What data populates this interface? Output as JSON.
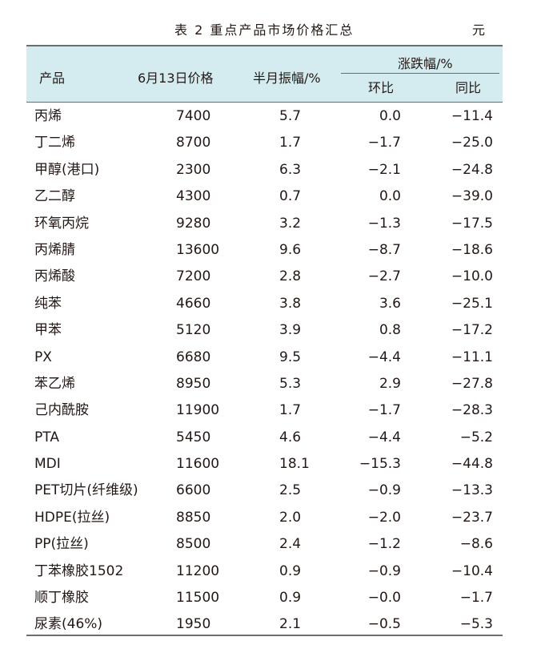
{
  "caption": {
    "title": "表 2  重点产品市场价格汇总",
    "unit": "元"
  },
  "headers": {
    "product": "产品",
    "price": "6月13日价格",
    "amplitude": "半月振幅/%",
    "change": "涨跌幅/%",
    "mom": "环比",
    "yoy": "同比"
  },
  "rows": [
    [
      "丙烯",
      "7400",
      "5.7",
      "0.0",
      "−11.4"
    ],
    [
      "丁二烯",
      "8700",
      "1.7",
      "−1.7",
      "−25.0"
    ],
    [
      "甲醇(港口)",
      "2300",
      "6.3",
      "−2.1",
      "−24.8"
    ],
    [
      "乙二醇",
      "4300",
      "0.7",
      "0.0",
      "−39.0"
    ],
    [
      "环氧丙烷",
      "9280",
      "3.2",
      "−1.3",
      "−17.5"
    ],
    [
      "丙烯腈",
      "13600",
      "9.6",
      "−8.7",
      "−18.6"
    ],
    [
      "丙烯酸",
      "7200",
      "2.8",
      "−2.7",
      "−10.0"
    ],
    [
      "纯苯",
      "4660",
      "3.8",
      "3.6",
      "−25.1"
    ],
    [
      "甲苯",
      "5120",
      "3.9",
      "0.8",
      "−17.2"
    ],
    [
      "PX",
      "6680",
      "9.5",
      "−4.4",
      "−11.1"
    ],
    [
      "苯乙烯",
      "8950",
      "5.3",
      "2.9",
      "−27.8"
    ],
    [
      "己内酰胺",
      "11900",
      "1.7",
      "−1.7",
      "−28.3"
    ],
    [
      "PTA",
      "5450",
      "4.6",
      "−4.4",
      "−5.2"
    ],
    [
      "MDI",
      "11600",
      "18.1",
      "−15.3",
      "−44.8"
    ],
    [
      "PET切片(纤维级)",
      "6600",
      "2.5",
      "−0.9",
      "−13.3"
    ],
    [
      "HDPE(拉丝)",
      "8850",
      "2.0",
      "−2.0",
      "−23.7"
    ],
    [
      "PP(拉丝)",
      "8500",
      "2.4",
      "−1.2",
      "−8.6"
    ],
    [
      "丁苯橡胶1502",
      "11200",
      "0.9",
      "−0.9",
      "−10.4"
    ],
    [
      "顺丁橡胶",
      "11500",
      "0.9",
      "−0.0",
      "−1.7"
    ],
    [
      "尿素(46%)",
      "1950",
      "2.1",
      "−0.5",
      "−5.3"
    ]
  ]
}
